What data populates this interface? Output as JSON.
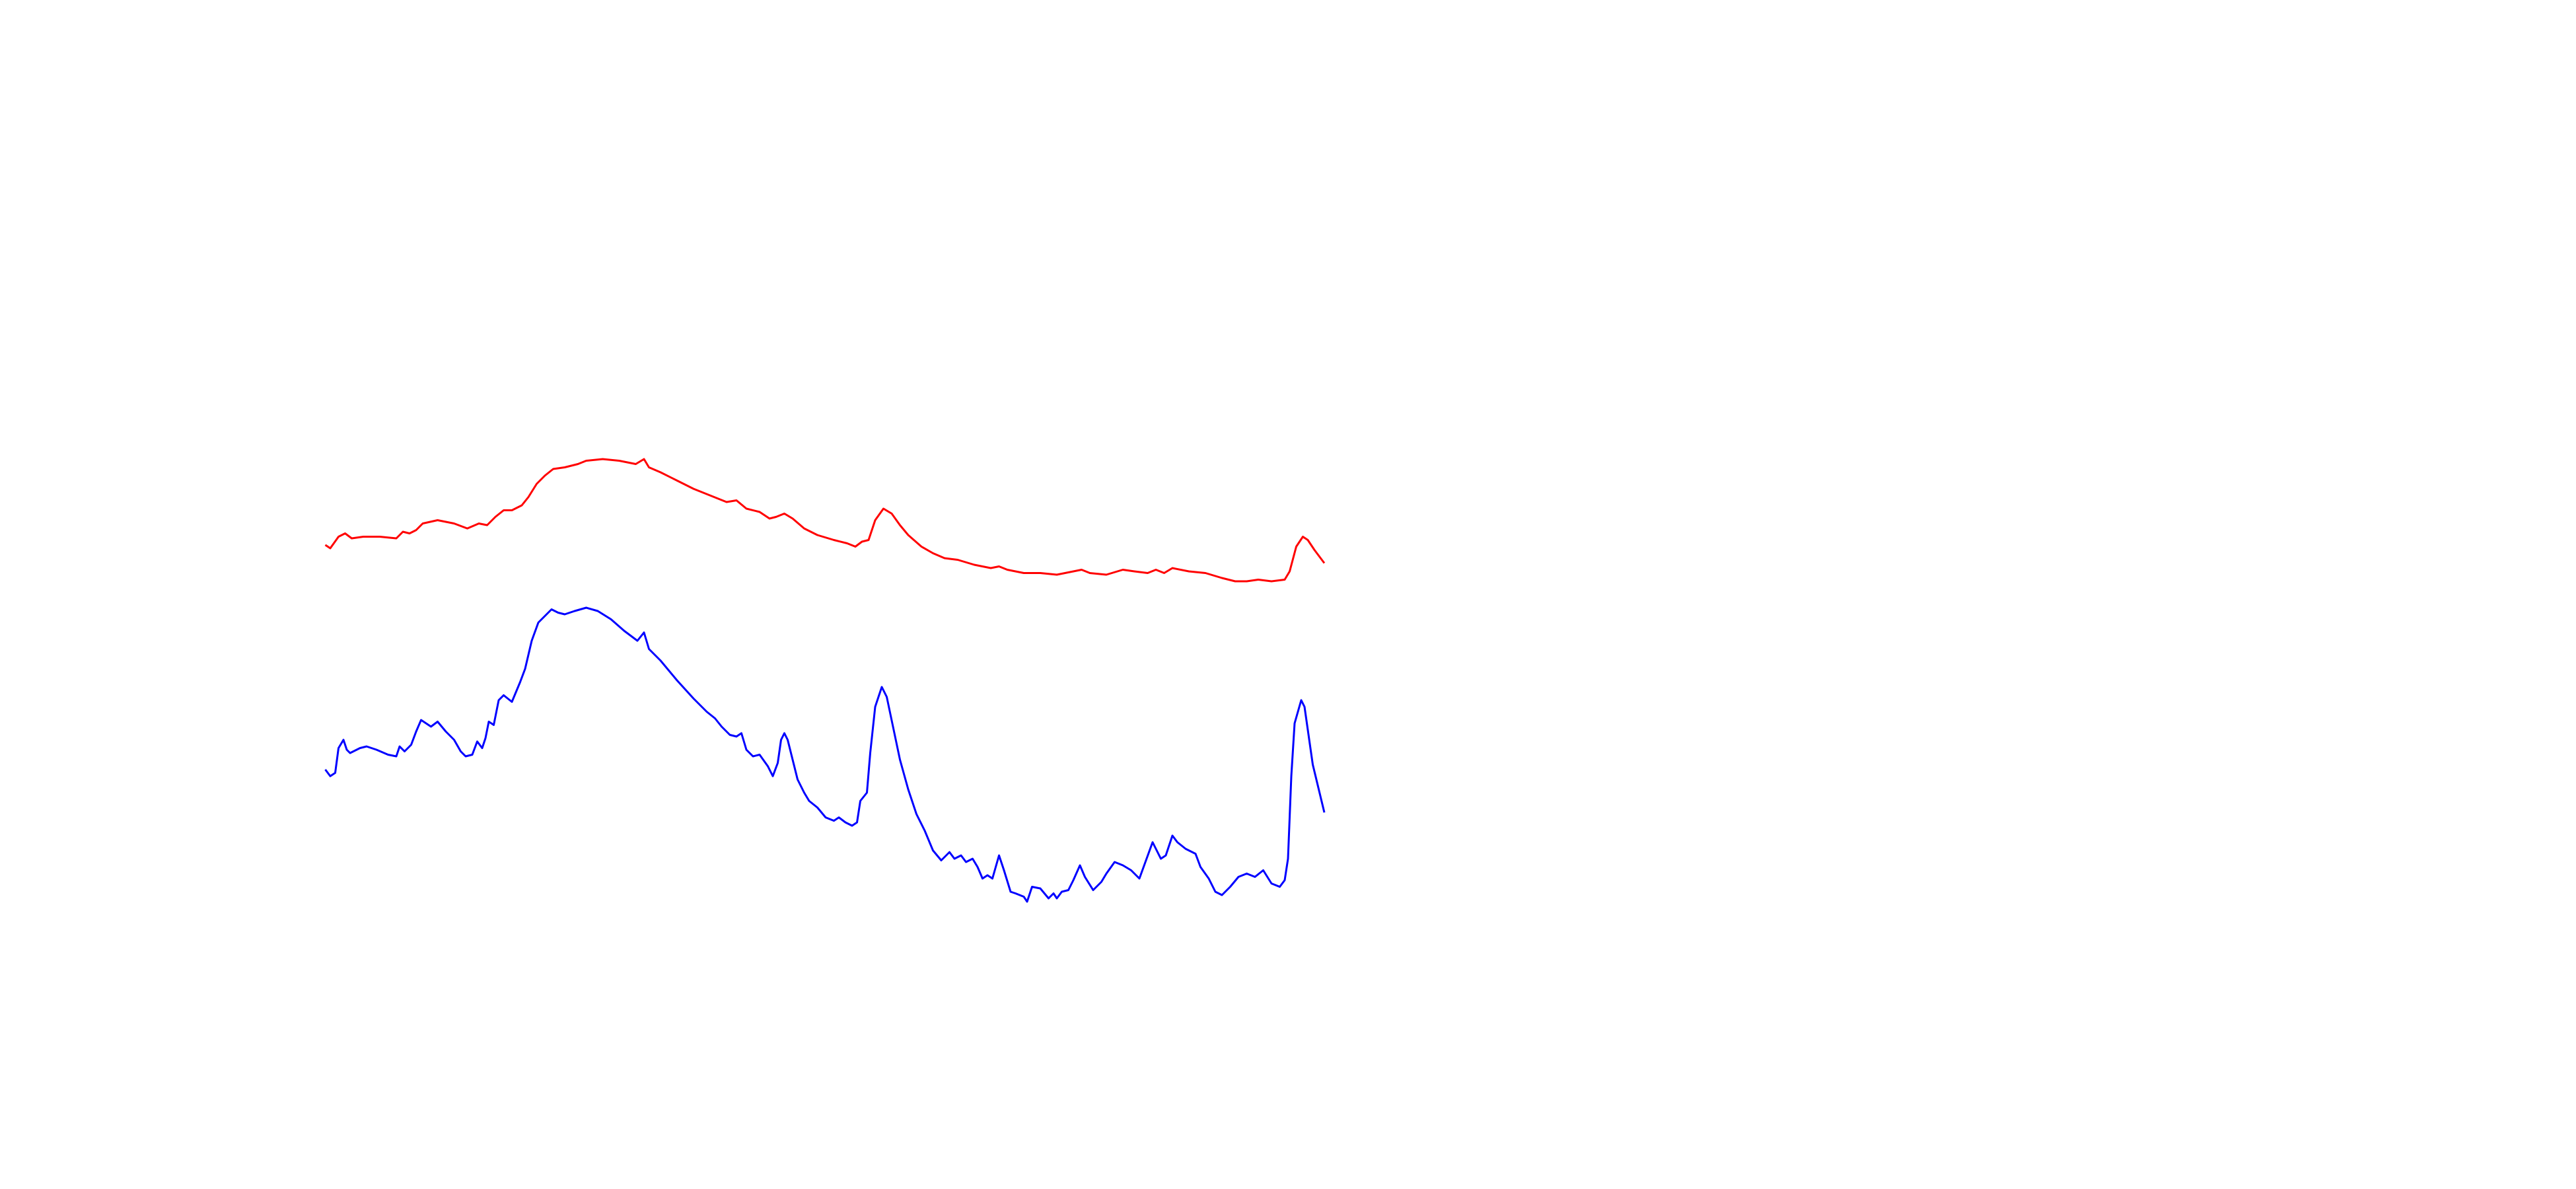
{
  "chart_data": {
    "type": "line",
    "xlim": [
      0,
      605
    ],
    "ylim": [
      0,
      400
    ],
    "series": [
      {
        "color": "#ff0000",
        "x": [
          0,
          3,
          8,
          12,
          16,
          23,
          33,
          43,
          47,
          51,
          55,
          59,
          68,
          78,
          86,
          93,
          98,
          103,
          108,
          113,
          119,
          123,
          128,
          133,
          138,
          145,
          153,
          158,
          168,
          178,
          188,
          193,
          196,
          203,
          213,
          223,
          233,
          243,
          249,
          255,
          263,
          269,
          273,
          278,
          283,
          290,
          298,
          308,
          316,
          321,
          325,
          329,
          333,
          338,
          343,
          348,
          353,
          361,
          368,
          375,
          383,
          393,
          403,
          408,
          413,
          423,
          433,
          443,
          453,
          458,
          463,
          473,
          483,
          490,
          498,
          503,
          508,
          513,
          523,
          533,
          543,
          551,
          558,
          565,
          573,
          581,
          584,
          588,
          592,
          595,
          599,
          605
        ],
        "values": [
          270,
          268,
          275,
          277,
          274,
          275,
          275,
          274,
          278,
          277,
          279,
          283,
          285,
          283,
          280,
          283,
          282,
          287,
          291,
          291,
          294,
          299,
          307,
          312,
          316,
          317,
          319,
          321,
          322,
          321,
          319,
          322,
          317,
          314,
          309,
          304,
          300,
          296,
          297,
          292,
          290,
          286,
          287,
          289,
          286,
          280,
          276,
          273,
          271,
          269,
          272,
          273,
          285,
          292,
          289,
          282,
          276,
          269,
          265,
          262,
          261,
          258,
          256,
          257,
          255,
          253,
          253,
          252,
          254,
          255,
          253,
          252,
          255,
          254,
          253,
          255,
          253,
          256,
          254,
          253,
          250,
          248,
          248,
          249,
          248,
          249,
          254,
          269,
          275,
          273,
          267,
          259
        ]
      },
      {
        "color": "#0000ff",
        "x": [
          0,
          3,
          6,
          8,
          11,
          13,
          15,
          21,
          25,
          31,
          38,
          43,
          45,
          48,
          52,
          55,
          58,
          61,
          64,
          68,
          73,
          78,
          82,
          85,
          89,
          92,
          95,
          97,
          99,
          102,
          105,
          108,
          113,
          118,
          121,
          125,
          129,
          133,
          137,
          141,
          145,
          151,
          158,
          165,
          173,
          181,
          189,
          193,
          196,
          203,
          213,
          223,
          231,
          236,
          240,
          245,
          249,
          252,
          255,
          259,
          263,
          268,
          271,
          274,
          276,
          278,
          280,
          283,
          286,
          290,
          293,
          298,
          303,
          308,
          311,
          315,
          319,
          322,
          324,
          328,
          330,
          333,
          337,
          340,
          344,
          348,
          353,
          358,
          363,
          368,
          373,
          378,
          381,
          385,
          388,
          392,
          395,
          398,
          401,
          404,
          408,
          411,
          415,
          418,
          423,
          425,
          428,
          433,
          438,
          441,
          443,
          446,
          450,
          453,
          457,
          460,
          465,
          470,
          473,
          478,
          483,
          488,
          493,
          497,
          501,
          506,
          509,
          513,
          516,
          521,
          527,
          530,
          535,
          539,
          543,
          548,
          553,
          558,
          563,
          568,
          573,
          578,
          581,
          583,
          585,
          587,
          591,
          593,
          598,
          605
        ],
        "values": [
          134,
          130,
          132,
          147,
          152,
          146,
          144,
          147,
          148,
          146,
          143,
          142,
          148,
          145,
          149,
          157,
          164,
          162,
          160,
          163,
          157,
          152,
          145,
          142,
          143,
          151,
          147,
          153,
          163,
          161,
          176,
          179,
          175,
          187,
          195,
          212,
          223,
          227,
          231,
          229,
          228,
          230,
          232,
          230,
          225,
          218,
          212,
          217,
          207,
          200,
          188,
          177,
          169,
          165,
          160,
          155,
          154,
          156,
          146,
          142,
          143,
          136,
          130,
          138,
          152,
          156,
          152,
          140,
          128,
          120,
          115,
          111,
          105,
          103,
          105,
          102,
          100,
          102,
          115,
          120,
          144,
          172,
          184,
          178,
          159,
          140,
          122,
          107,
          97,
          85,
          79,
          84,
          80,
          82,
          78,
          80,
          75,
          68,
          70,
          68,
          82,
          73,
          60,
          59,
          57,
          54,
          63,
          62,
          56,
          59,
          56,
          60,
          61,
          67,
          76,
          69,
          61,
          66,
          71,
          78,
          76,
          73,
          68,
          79,
          90,
          80,
          82,
          94,
          90,
          86,
          83,
          75,
          68,
          60,
          58,
          63,
          69,
          71,
          69,
          73,
          65,
          63,
          67,
          80,
          130,
          162,
          176,
          172,
          137,
          108
        ]
      }
    ]
  }
}
